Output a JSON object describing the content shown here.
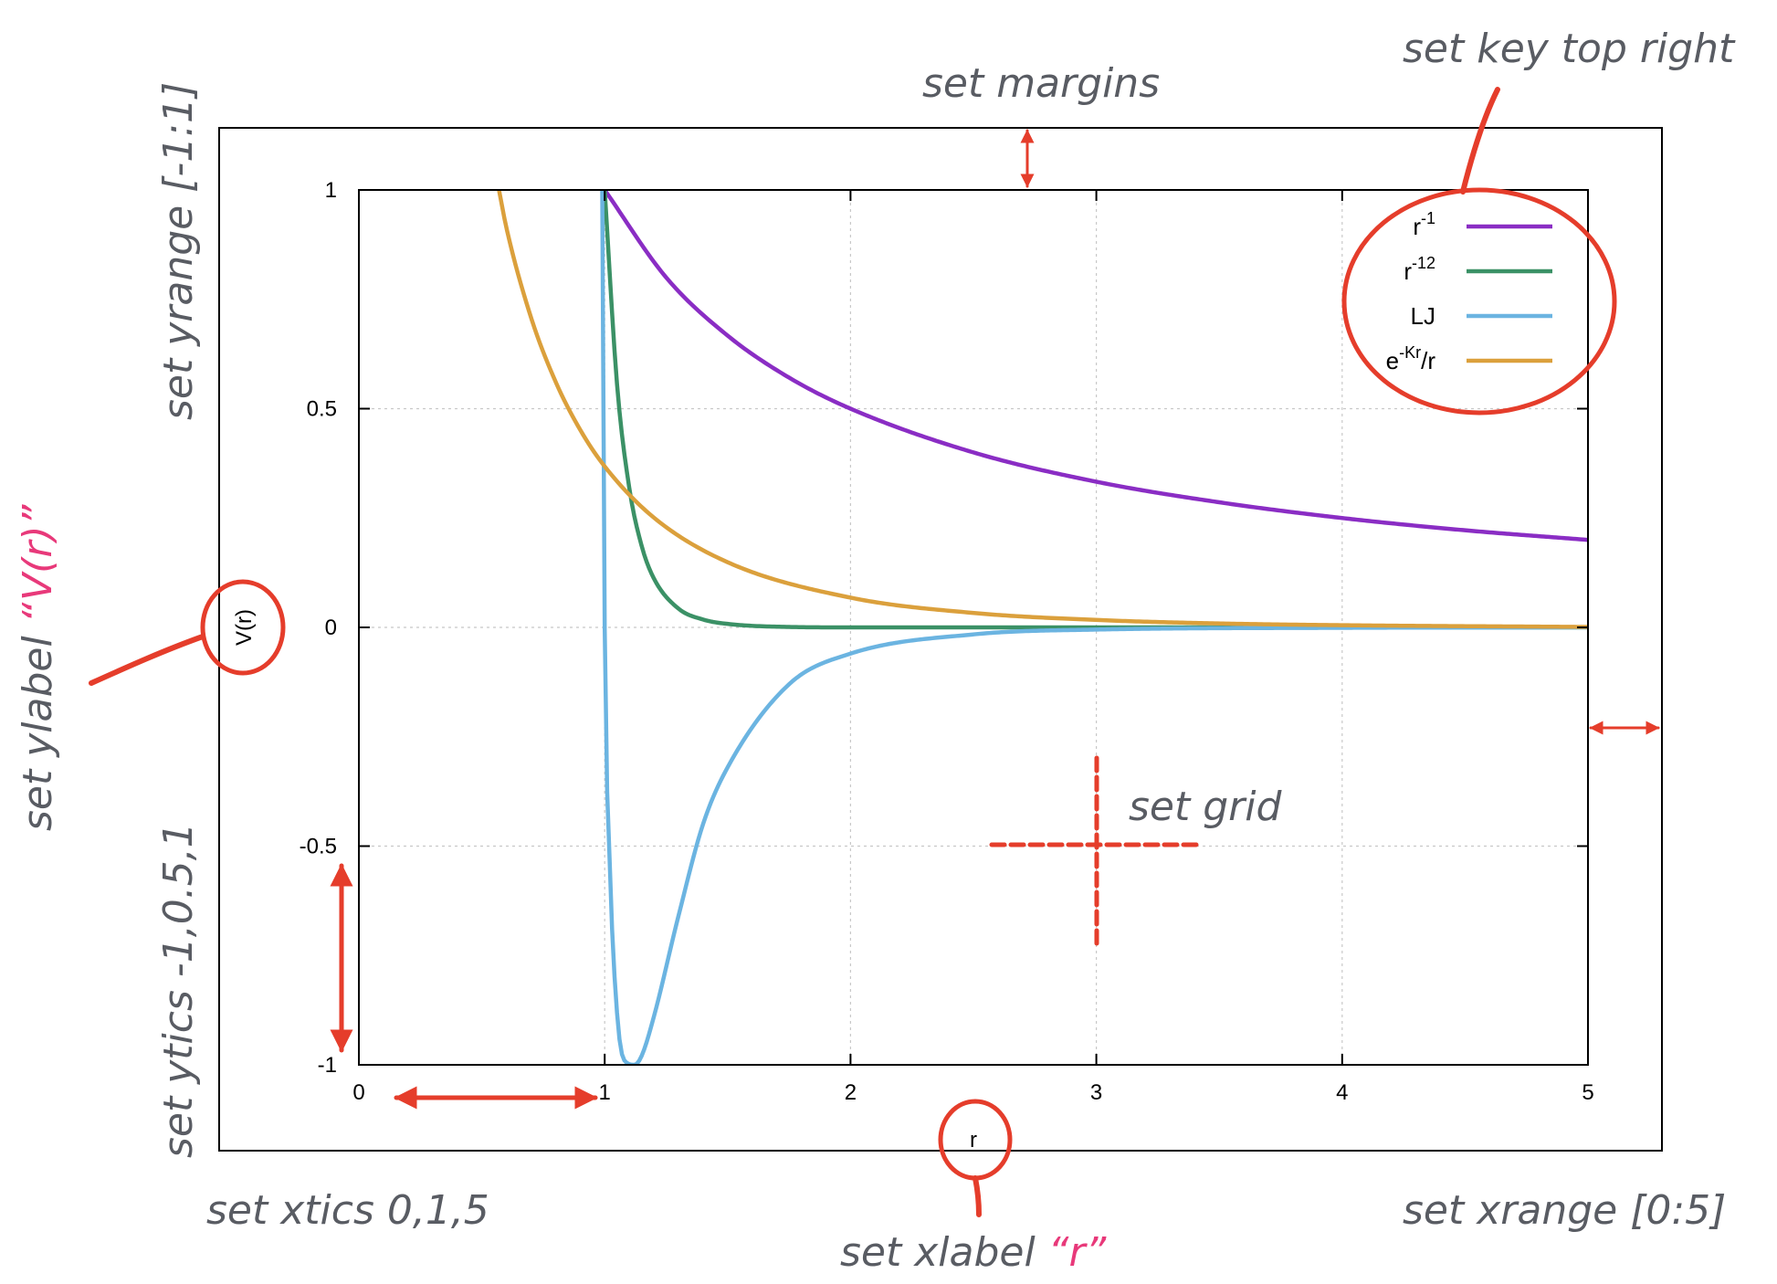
{
  "colors": {
    "annotation_text": "#595c63",
    "annotation_highlight": "#e8397a",
    "annotation_marks": "#e53d2b",
    "grid": "#c8c8c8"
  },
  "annotations": {
    "margins": "set margins",
    "key": "set key top right",
    "yrange": "set yrange [-1:1]",
    "ylabel_prefix": "set ylabel ",
    "ylabel_value": "“V(r)”",
    "ytics": "set ytics -1,0.5,1",
    "xtics": "set xtics 0,1,5",
    "xlabel_prefix": "set xlabel ",
    "xlabel_value": "“r”",
    "xrange": "set xrange [0:5]",
    "grid": "set grid"
  },
  "chart_data": {
    "type": "line",
    "xlabel": "r",
    "ylabel": "V(r)",
    "xlim": [
      0,
      5
    ],
    "ylim": [
      -1,
      1
    ],
    "xticks": [
      "0",
      "1",
      "2",
      "3",
      "4",
      "5"
    ],
    "yticks": [
      "-1",
      "-0.5",
      "0",
      "0.5",
      "1"
    ],
    "grid": true,
    "legend_position": "top-right",
    "series": [
      {
        "name_base": "r",
        "name_sup": "-1",
        "name_tail": "",
        "color": "#8a2dc4",
        "x": [
          1.0,
          1.25,
          1.5,
          1.75,
          2.0,
          2.5,
          3.0,
          3.5,
          4.0,
          4.5,
          5.0
        ],
        "y": [
          1.0,
          0.8,
          0.667,
          0.571,
          0.5,
          0.4,
          0.333,
          0.286,
          0.25,
          0.222,
          0.2
        ]
      },
      {
        "name_base": "r",
        "name_sup": "-12",
        "name_tail": "",
        "color": "#3b9166",
        "x": [
          1.0,
          1.05,
          1.1,
          1.15,
          1.2,
          1.3,
          1.4,
          1.5,
          1.75,
          2.0,
          3.0,
          5.0
        ],
        "y": [
          1.0,
          0.557,
          0.319,
          0.187,
          0.112,
          0.043,
          0.018,
          0.008,
          0.001,
          0.0,
          0.0,
          0.0
        ]
      },
      {
        "name_base": "LJ",
        "name_sup": "",
        "name_tail": "",
        "color": "#6bb4e1",
        "x": [
          0.99,
          1.0,
          1.02,
          1.05,
          1.08,
          1.122,
          1.15,
          1.2,
          1.3,
          1.4,
          1.5,
          1.75,
          2.0,
          2.5,
          3.0,
          4.0,
          5.0
        ],
        "y": [
          1.0,
          0.0,
          -0.53,
          -0.88,
          -0.99,
          -1.0,
          -0.98,
          -0.89,
          -0.66,
          -0.45,
          -0.32,
          -0.13,
          -0.06,
          -0.016,
          -0.005,
          -0.001,
          0.0
        ]
      },
      {
        "name_base": "e",
        "name_sup": "-Kr",
        "name_tail": "/r",
        "color": "#dba03c",
        "x": [
          0.57,
          0.6,
          0.7,
          0.8,
          0.9,
          1.0,
          1.2,
          1.5,
          2.0,
          2.5,
          3.0,
          3.5,
          4.0,
          5.0
        ],
        "y": [
          1.0,
          0.914,
          0.709,
          0.562,
          0.452,
          0.368,
          0.251,
          0.149,
          0.068,
          0.033,
          0.017,
          0.009,
          0.005,
          0.001
        ]
      }
    ]
  }
}
